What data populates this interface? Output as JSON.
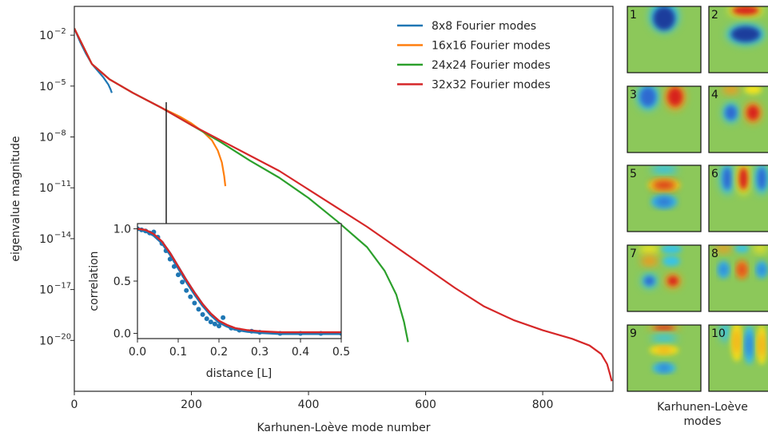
{
  "chart_data": [
    {
      "type": "line",
      "xlabel": "Karhunen-Loève mode number",
      "ylabel": "eigenvalue magnitude",
      "xlim": [
        0,
        920
      ],
      "ylim_log10": [
        -23,
        -0.3
      ],
      "yscale": "log",
      "xticks": [
        0,
        200,
        400,
        600,
        800
      ],
      "yticks": [
        {
          "exp": -2,
          "label": "-2"
        },
        {
          "exp": -5,
          "label": "-5"
        },
        {
          "exp": -8,
          "label": "-8"
        },
        {
          "exp": -11,
          "label": "-11"
        },
        {
          "exp": -14,
          "label": "-14"
        },
        {
          "exp": -17,
          "label": "-17"
        },
        {
          "exp": -20,
          "label": "-20"
        }
      ],
      "legend_position": "top-right",
      "series": [
        {
          "name": "8x8 Fourier modes",
          "color": "#1f77b4",
          "points": [
            [
              0,
              -1.6
            ],
            [
              10,
              -2.4
            ],
            [
              20,
              -3.1
            ],
            [
              30,
              -3.7
            ],
            [
              40,
              -4.1
            ],
            [
              50,
              -4.5
            ],
            [
              58,
              -4.9
            ],
            [
              62,
              -5.2
            ],
            [
              64,
              -5.4
            ]
          ]
        },
        {
          "name": "16x16 Fourier modes",
          "color": "#ff7f0e",
          "points": [
            [
              0,
              -1.6
            ],
            [
              30,
              -3.7
            ],
            [
              60,
              -4.6
            ],
            [
              100,
              -5.4
            ],
            [
              150,
              -6.3
            ],
            [
              180,
              -6.8
            ],
            [
              200,
              -7.2
            ],
            [
              220,
              -7.7
            ],
            [
              235,
              -8.2
            ],
            [
              245,
              -8.8
            ],
            [
              252,
              -9.5
            ],
            [
              256,
              -10.3
            ],
            [
              258,
              -10.9
            ]
          ]
        },
        {
          "name": "24x24 Fourier modes",
          "color": "#2ca02c",
          "points": [
            [
              0,
              -1.6
            ],
            [
              30,
              -3.7
            ],
            [
              60,
              -4.6
            ],
            [
              100,
              -5.4
            ],
            [
              150,
              -6.3
            ],
            [
              200,
              -7.3
            ],
            [
              250,
              -8.3
            ],
            [
              300,
              -9.4
            ],
            [
              350,
              -10.4
            ],
            [
              400,
              -11.6
            ],
            [
              450,
              -13.0
            ],
            [
              500,
              -14.5
            ],
            [
              530,
              -15.9
            ],
            [
              550,
              -17.3
            ],
            [
              563,
              -18.9
            ],
            [
              570,
              -20.1
            ]
          ]
        },
        {
          "name": "32x32 Fourier modes",
          "color": "#d62728",
          "points": [
            [
              0,
              -1.6
            ],
            [
              30,
              -3.7
            ],
            [
              60,
              -4.6
            ],
            [
              100,
              -5.4
            ],
            [
              150,
              -6.3
            ],
            [
              200,
              -7.3
            ],
            [
              250,
              -8.2
            ],
            [
              300,
              -9.1
            ],
            [
              350,
              -10.0
            ],
            [
              400,
              -11.1
            ],
            [
              450,
              -12.2
            ],
            [
              500,
              -13.3
            ],
            [
              550,
              -14.5
            ],
            [
              600,
              -15.7
            ],
            [
              650,
              -16.9
            ],
            [
              700,
              -18.0
            ],
            [
              750,
              -18.8
            ],
            [
              800,
              -19.4
            ],
            [
              850,
              -19.9
            ],
            [
              880,
              -20.3
            ],
            [
              900,
              -20.8
            ],
            [
              910,
              -21.4
            ],
            [
              915,
              -22.0
            ],
            [
              918,
              -22.4
            ]
          ]
        }
      ]
    },
    {
      "type": "scatter+line",
      "xlabel": "distance [L]",
      "ylabel": "correlation",
      "xlim": [
        0,
        0.5
      ],
      "ylim": [
        -0.05,
        1.05
      ],
      "xticks": [
        "0.0",
        "0.1",
        "0.2",
        "0.3",
        "0.4",
        "0.5"
      ],
      "yticks": [
        "0.0",
        "0.5",
        "1.0"
      ],
      "series": [
        {
          "name": "",
          "style": "points",
          "color": "#1f77b4",
          "points": [
            [
              0.0,
              1.0
            ],
            [
              0.01,
              0.99
            ],
            [
              0.02,
              0.98
            ],
            [
              0.03,
              0.96
            ],
            [
              0.04,
              0.97
            ],
            [
              0.05,
              0.92
            ],
            [
              0.06,
              0.86
            ],
            [
              0.07,
              0.79
            ],
            [
              0.08,
              0.71
            ],
            [
              0.09,
              0.64
            ],
            [
              0.1,
              0.56
            ],
            [
              0.11,
              0.49
            ],
            [
              0.12,
              0.41
            ],
            [
              0.13,
              0.35
            ],
            [
              0.14,
              0.29
            ],
            [
              0.15,
              0.23
            ],
            [
              0.16,
              0.18
            ],
            [
              0.17,
              0.14
            ],
            [
              0.18,
              0.11
            ],
            [
              0.19,
              0.09
            ],
            [
              0.2,
              0.07
            ],
            [
              0.21,
              0.15
            ],
            [
              0.23,
              0.05
            ],
            [
              0.25,
              0.03
            ],
            [
              0.28,
              0.02
            ],
            [
              0.3,
              0.01
            ],
            [
              0.35,
              0.0
            ],
            [
              0.4,
              0.0
            ],
            [
              0.45,
              0.0
            ],
            [
              0.5,
              0.0
            ]
          ]
        },
        {
          "name": "",
          "style": "line",
          "color": "#1f77b4",
          "points": [
            [
              0.0,
              1.0
            ],
            [
              0.02,
              0.98
            ],
            [
              0.04,
              0.94
            ],
            [
              0.06,
              0.87
            ],
            [
              0.08,
              0.76
            ],
            [
              0.1,
              0.63
            ],
            [
              0.12,
              0.5
            ],
            [
              0.14,
              0.38
            ],
            [
              0.16,
              0.27
            ],
            [
              0.18,
              0.18
            ],
            [
              0.2,
              0.11
            ],
            [
              0.22,
              0.07
            ],
            [
              0.24,
              0.04
            ],
            [
              0.27,
              0.02
            ],
            [
              0.3,
              0.01
            ],
            [
              0.35,
              0.0
            ],
            [
              0.5,
              0.0
            ]
          ]
        },
        {
          "name": "",
          "style": "line",
          "color": "#d62728",
          "points": [
            [
              0.0,
              1.0
            ],
            [
              0.02,
              0.99
            ],
            [
              0.04,
              0.95
            ],
            [
              0.06,
              0.88
            ],
            [
              0.08,
              0.77
            ],
            [
              0.1,
              0.64
            ],
            [
              0.12,
              0.51
            ],
            [
              0.14,
              0.39
            ],
            [
              0.16,
              0.28
            ],
            [
              0.18,
              0.19
            ],
            [
              0.2,
              0.12
            ],
            [
              0.22,
              0.08
            ],
            [
              0.24,
              0.05
            ],
            [
              0.27,
              0.03
            ],
            [
              0.3,
              0.02
            ],
            [
              0.35,
              0.01
            ],
            [
              0.5,
              0.01
            ]
          ]
        }
      ]
    },
    {
      "type": "heatmap",
      "title": "Karhunen-Loève modes",
      "tiles": [
        {
          "label": "1"
        },
        {
          "label": "2"
        },
        {
          "label": "3"
        },
        {
          "label": "4"
        },
        {
          "label": "5"
        },
        {
          "label": "6"
        },
        {
          "label": "7"
        },
        {
          "label": "8"
        },
        {
          "label": "9"
        },
        {
          "label": "10"
        }
      ]
    }
  ]
}
